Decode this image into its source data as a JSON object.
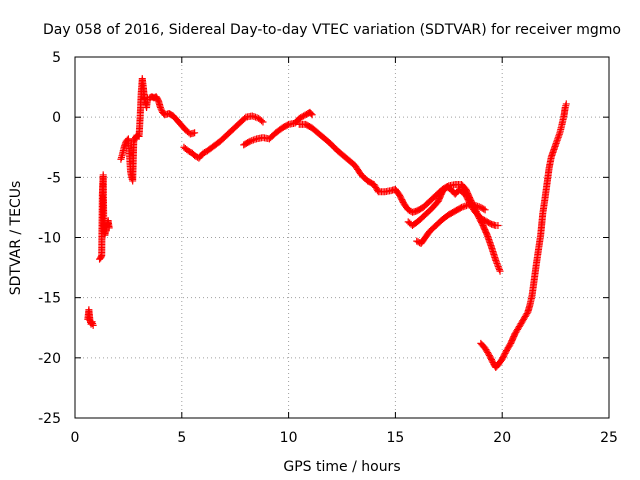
{
  "chart_data": {
    "type": "scatter",
    "title": "Day 058 of 2016, Sidereal Day-to-day VTEC variation (SDTVAR) for receiver mgmo",
    "xlabel": "GPS time / hours",
    "ylabel": "SDTVAR / TECUs",
    "xlim": [
      0,
      25
    ],
    "ylim": [
      -25,
      5
    ],
    "xticks": [
      "0",
      "5",
      "10",
      "15",
      "20",
      "25"
    ],
    "yticks": [
      "5",
      "0",
      "-5",
      "-10",
      "-15",
      "-20",
      "-25"
    ],
    "grid": true,
    "marker": "+",
    "color": "#ff0000",
    "series": [
      {
        "name": "SDTVAR",
        "segments": [
          [
            [
              0.6,
              -16.8
            ],
            [
              0.65,
              -16.0
            ],
            [
              0.7,
              -16.9
            ],
            [
              0.75,
              -17.2
            ],
            [
              0.8,
              -17.0
            ],
            [
              0.85,
              -17.3
            ]
          ],
          [
            [
              1.15,
              -11.8
            ],
            [
              1.2,
              -11.7
            ],
            [
              1.25,
              -11.5
            ],
            [
              1.28,
              -6.5
            ],
            [
              1.3,
              -5.5
            ],
            [
              1.32,
              -4.8
            ],
            [
              1.35,
              -9.5
            ],
            [
              1.4,
              -9.8
            ],
            [
              1.45,
              -9.2
            ],
            [
              1.5,
              -9.0
            ],
            [
              1.55,
              -8.6
            ],
            [
              1.6,
              -9.2
            ]
          ],
          [
            [
              2.15,
              -3.5
            ],
            [
              2.2,
              -3.2
            ],
            [
              2.3,
              -2.5
            ],
            [
              2.4,
              -2.0
            ],
            [
              2.5,
              -1.8
            ],
            [
              2.6,
              -4.5
            ],
            [
              2.65,
              -5.0
            ],
            [
              2.7,
              -5.3
            ],
            [
              2.75,
              -2.0
            ],
            [
              2.8,
              -1.8
            ],
            [
              2.9,
              -1.5
            ],
            [
              3.0,
              -1.6
            ],
            [
              3.05,
              0.0
            ],
            [
              3.1,
              2.0
            ],
            [
              3.15,
              3.2
            ],
            [
              3.2,
              2.5
            ],
            [
              3.25,
              1.5
            ],
            [
              3.3,
              1.2
            ],
            [
              3.35,
              0.8
            ],
            [
              3.4,
              1.6
            ],
            [
              3.5,
              1.6
            ],
            [
              3.6,
              1.7
            ],
            [
              3.7,
              1.6
            ],
            [
              3.8,
              1.7
            ],
            [
              3.9,
              1.4
            ],
            [
              4.0,
              0.8
            ],
            [
              4.1,
              0.4
            ],
            [
              4.2,
              0.2
            ],
            [
              4.4,
              0.3
            ],
            [
              4.5,
              0.2
            ],
            [
              4.6,
              0.1
            ],
            [
              4.8,
              -0.3
            ],
            [
              5.0,
              -0.7
            ],
            [
              5.2,
              -1.1
            ],
            [
              5.4,
              -1.4
            ],
            [
              5.6,
              -1.3
            ]
          ],
          [
            [
              5.1,
              -2.5
            ],
            [
              5.3,
              -2.8
            ],
            [
              5.5,
              -3.0
            ],
            [
              5.6,
              -3.2
            ],
            [
              5.8,
              -3.4
            ],
            [
              6.0,
              -3.0
            ],
            [
              6.2,
              -2.8
            ],
            [
              6.5,
              -2.4
            ],
            [
              6.8,
              -2.0
            ],
            [
              7.1,
              -1.5
            ],
            [
              7.4,
              -1.0
            ],
            [
              7.7,
              -0.5
            ],
            [
              8.0,
              0.0
            ],
            [
              8.3,
              0.1
            ],
            [
              8.6,
              -0.1
            ],
            [
              8.8,
              -0.4
            ]
          ],
          [
            [
              7.9,
              -2.3
            ],
            [
              8.2,
              -2.0
            ],
            [
              8.5,
              -1.8
            ],
            [
              8.8,
              -1.7
            ],
            [
              9.1,
              -1.8
            ],
            [
              9.4,
              -1.3
            ],
            [
              9.7,
              -0.9
            ],
            [
              10.0,
              -0.6
            ],
            [
              10.3,
              -0.5
            ],
            [
              10.5,
              -0.1
            ],
            [
              10.7,
              0.1
            ],
            [
              10.9,
              0.3
            ],
            [
              11.0,
              0.4
            ],
            [
              11.1,
              0.2
            ]
          ],
          [
            [
              10.5,
              -0.6
            ],
            [
              10.8,
              -0.6
            ],
            [
              11.1,
              -0.9
            ],
            [
              11.5,
              -1.5
            ],
            [
              11.9,
              -2.1
            ],
            [
              12.3,
              -2.8
            ],
            [
              12.7,
              -3.4
            ],
            [
              13.1,
              -4.0
            ],
            [
              13.4,
              -4.8
            ],
            [
              13.7,
              -5.3
            ],
            [
              14.0,
              -5.6
            ],
            [
              14.2,
              -6.2
            ],
            [
              14.5,
              -6.2
            ],
            [
              14.8,
              -6.1
            ],
            [
              15.0,
              -6.0
            ],
            [
              15.2,
              -6.5
            ],
            [
              15.4,
              -7.2
            ],
            [
              15.6,
              -7.7
            ],
            [
              15.8,
              -7.9
            ],
            [
              16.0,
              -7.8
            ],
            [
              16.3,
              -7.5
            ],
            [
              16.6,
              -7.0
            ],
            [
              16.9,
              -6.5
            ],
            [
              17.2,
              -6.0
            ],
            [
              17.5,
              -5.7
            ],
            [
              17.8,
              -5.6
            ],
            [
              18.1,
              -5.6
            ],
            [
              18.3,
              -6.0
            ],
            [
              18.5,
              -6.8
            ],
            [
              18.7,
              -7.5
            ],
            [
              18.9,
              -8.3
            ],
            [
              19.1,
              -9.0
            ],
            [
              19.3,
              -9.8
            ],
            [
              19.5,
              -10.8
            ],
            [
              19.7,
              -11.9
            ],
            [
              19.9,
              -12.8
            ]
          ],
          [
            [
              15.6,
              -8.7
            ],
            [
              15.8,
              -9.0
            ],
            [
              16.1,
              -8.6
            ],
            [
              16.4,
              -8.1
            ],
            [
              16.7,
              -7.6
            ],
            [
              17.0,
              -7.0
            ],
            [
              17.2,
              -6.2
            ],
            [
              17.4,
              -5.8
            ],
            [
              17.6,
              -6.0
            ],
            [
              17.8,
              -6.4
            ],
            [
              18.0,
              -6.0
            ],
            [
              18.3,
              -6.5
            ],
            [
              18.5,
              -7.2
            ],
            [
              18.7,
              -7.8
            ],
            [
              18.9,
              -8.2
            ],
            [
              19.1,
              -8.5
            ],
            [
              19.3,
              -8.7
            ],
            [
              19.5,
              -8.9
            ],
            [
              19.7,
              -9.0
            ],
            [
              19.8,
              -9.0
            ]
          ],
          [
            [
              16.0,
              -10.3
            ],
            [
              16.2,
              -10.5
            ],
            [
              16.4,
              -10.0
            ],
            [
              16.6,
              -9.5
            ],
            [
              16.9,
              -9.0
            ],
            [
              17.2,
              -8.5
            ],
            [
              17.5,
              -8.1
            ],
            [
              17.8,
              -7.8
            ],
            [
              18.1,
              -7.5
            ],
            [
              18.4,
              -7.3
            ],
            [
              18.7,
              -7.3
            ],
            [
              19.0,
              -7.5
            ],
            [
              19.2,
              -7.7
            ]
          ],
          [
            [
              19.0,
              -18.8
            ],
            [
              19.2,
              -19.2
            ],
            [
              19.4,
              -19.8
            ],
            [
              19.6,
              -20.5
            ],
            [
              19.7,
              -20.8
            ],
            [
              19.8,
              -20.6
            ],
            [
              20.0,
              -20.1
            ],
            [
              20.2,
              -19.4
            ],
            [
              20.4,
              -18.8
            ],
            [
              20.6,
              -18.0
            ],
            [
              20.8,
              -17.4
            ],
            [
              21.0,
              -16.8
            ],
            [
              21.2,
              -16.2
            ],
            [
              21.3,
              -15.6
            ],
            [
              21.4,
              -14.8
            ],
            [
              21.5,
              -13.5
            ],
            [
              21.6,
              -12.2
            ],
            [
              21.7,
              -11.0
            ],
            [
              21.8,
              -9.8
            ],
            [
              21.9,
              -8.0
            ],
            [
              22.0,
              -6.8
            ],
            [
              22.1,
              -5.5
            ],
            [
              22.2,
              -4.2
            ],
            [
              22.3,
              -3.3
            ],
            [
              22.4,
              -2.8
            ],
            [
              22.5,
              -2.3
            ],
            [
              22.6,
              -1.8
            ],
            [
              22.7,
              -1.3
            ],
            [
              22.8,
              -0.6
            ],
            [
              22.9,
              0.2
            ],
            [
              22.95,
              0.8
            ],
            [
              23.0,
              1.1
            ]
          ]
        ]
      }
    ]
  }
}
